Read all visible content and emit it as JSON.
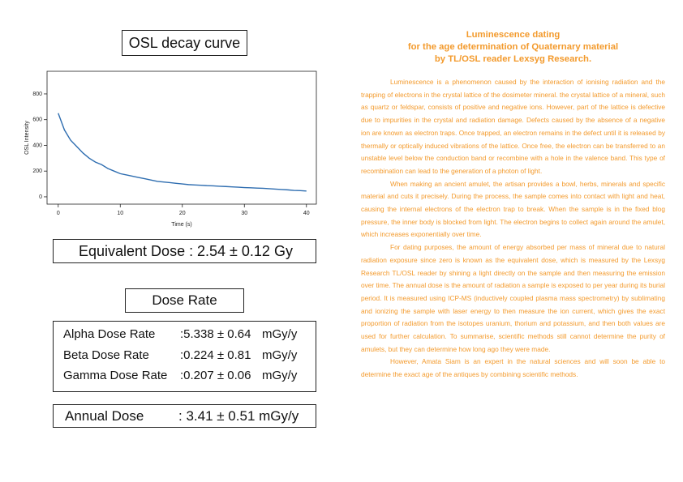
{
  "chart": {
    "type": "line",
    "title": "OSL decay curve",
    "x_label": "Time (s)",
    "y_label": "OSL Intensity",
    "x": [
      0,
      1,
      2,
      3,
      4,
      5,
      6,
      7,
      8,
      9,
      10,
      11,
      12,
      13,
      14,
      15,
      16,
      17,
      18,
      19,
      20,
      21,
      22,
      23,
      24,
      25,
      26,
      27,
      28,
      29,
      30,
      31,
      32,
      33,
      34,
      35,
      36,
      37,
      38,
      39,
      40
    ],
    "values": [
      650,
      520,
      440,
      390,
      340,
      300,
      270,
      250,
      220,
      200,
      180,
      170,
      160,
      150,
      140,
      130,
      120,
      115,
      110,
      105,
      100,
      95,
      92,
      90,
      87,
      85,
      82,
      80,
      77,
      75,
      72,
      70,
      68,
      66,
      63,
      60,
      57,
      54,
      50,
      48,
      45
    ],
    "color": "#2e6db0",
    "xlim": [
      -1.8,
      41.6
    ],
    "ylim": [
      -57,
      976
    ],
    "xticks": [
      0,
      10,
      20,
      30,
      40
    ],
    "yticks": [
      0,
      200,
      400,
      600,
      800
    ]
  },
  "equivalent_dose": {
    "label": "Equivalent Dose :",
    "value": "2.54 ± 0.12 Gy"
  },
  "dose_rate": {
    "title": "Dose Rate",
    "rows": [
      {
        "label": "Alpha Dose Rate",
        "value": ":5.338 ± 0.64",
        "unit": "mGy/y"
      },
      {
        "label": "Beta Dose Rate",
        "value": ":0.224 ± 0.81",
        "unit": "mGy/y"
      },
      {
        "label": "Gamma Dose Rate",
        "value": ":0.207 ± 0.06",
        "unit": "mGy/y"
      }
    ]
  },
  "annual_dose": {
    "label": "Annual Dose",
    "value": ": 3.41 ± 0.51 mGy/y"
  },
  "article": {
    "heading": [
      "Luminescence dating",
      "for the age determination of Quaternary material",
      "by TL/OSL reader Lexsyg Research."
    ],
    "paragraphs": [
      "Luminescence is a phenomenon caused by the interaction of ionising radiation and the trapping of electrons in the crystal lattice of the dosimeter mineral. the crystal lattice of a mineral, such as quartz or feldspar, consists of positive and negative ions. However, part of the lattice is defective due to impurities in the crystal and radiation damage. Defects caused by the absence of a negative ion are known as electron traps. Once trapped, an electron remains in the defect until it is released by thermally or optically induced vibrations of the lattice. Once free, the electron can be transferred to an unstable level below the conduction band or recombine with a hole in the valence band. This type of recombination can lead to the generation of a photon of light.",
      "When making an ancient amulet, the artisan provides a bowl, herbs, minerals and specific material and cuts it precisely. During the process, the sample comes into contact with light and heat, causing the internal electrons of the electron trap to break. When the sample is in the fixed blog pressure, the inner body is blocked from light. The electron begins to collect again around the amulet, which increases exponentially over time.",
      "For dating purposes, the amount of energy absorbed per mass of mineral due to natural radiation exposure since zero is known as the equivalent dose, which is measured by the Lexsyg Research TL/OSL reader by shining a light directly on the sample and then measuring the emission over time. The annual dose is the amount of radiation a sample is exposed to per year during its burial period. It is measured using ICP-MS (inductively coupled plasma mass spectrometry) by sublimating and ionizing the sample with laser energy to then measure the ion current, which gives the exact proportion of radiation from the isotopes uranium, thorium and potassium, and then both values are used for further calculation. To summarise, scientific methods still cannot determine the purity of amulets, but they can determine how long ago they were made.",
      "However, Amata Siam is an expert in the natural sciences and will soon be able to determine the exact age of the antiques by combining scientific methods."
    ]
  }
}
